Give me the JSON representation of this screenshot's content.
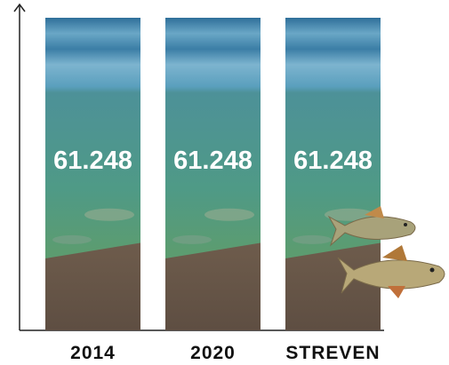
{
  "chart_data": {
    "type": "bar",
    "categories": [
      "2014",
      "2020",
      "STREVEN"
    ],
    "values": [
      61248,
      61248,
      61248
    ],
    "value_labels": [
      "61.248",
      "61.248",
      "61.248"
    ]
  }
}
